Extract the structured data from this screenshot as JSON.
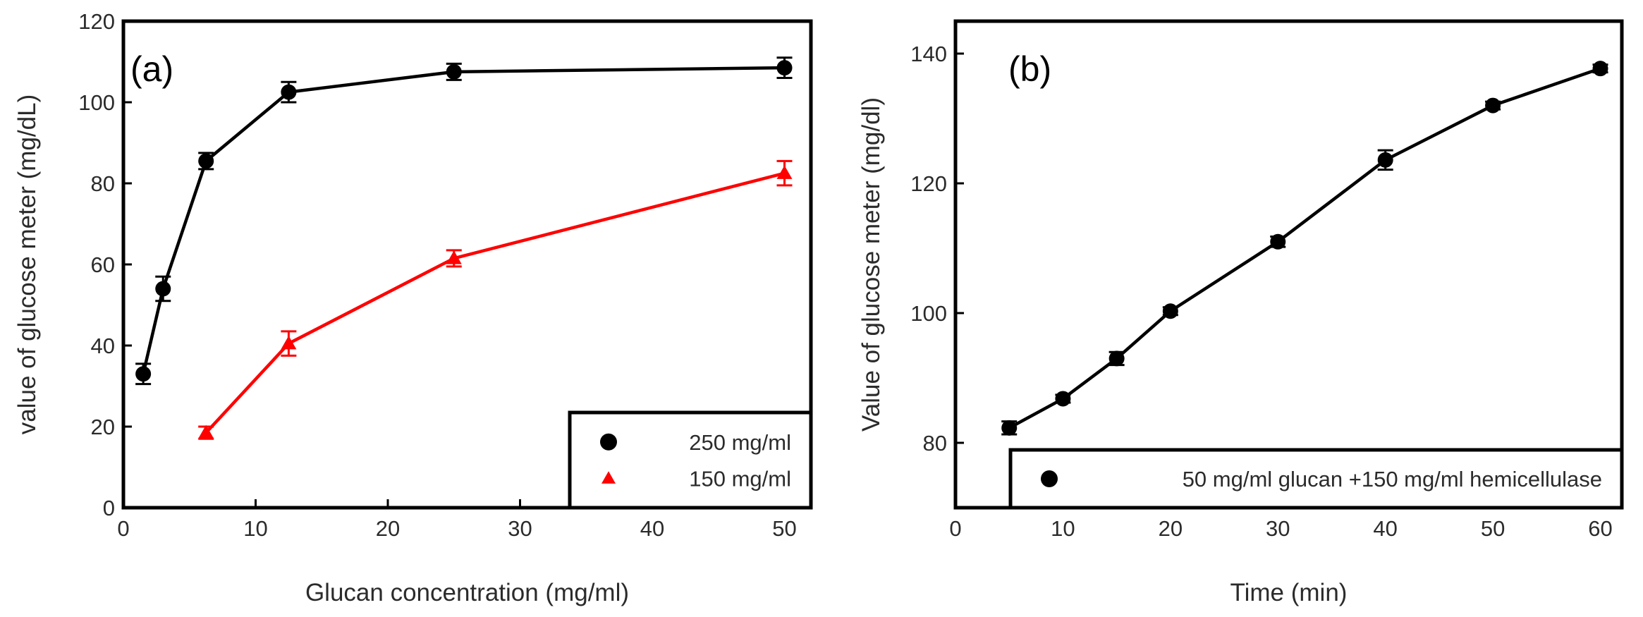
{
  "chart_data": [
    {
      "type": "line",
      "panel_label": "(a)",
      "xlabel": "Glucan concentration (mg/ml)",
      "ylabel": "value of glucose meter (mg/dL)",
      "xlim": [
        0,
        52
      ],
      "ylim": [
        0,
        120
      ],
      "xticks": [
        0,
        10,
        20,
        30,
        40,
        50
      ],
      "yticks": [
        0,
        20,
        40,
        60,
        80,
        100,
        120
      ],
      "grid": false,
      "legend_position": "bottom-right",
      "series": [
        {
          "name": "250 mg/ml",
          "color": "#000000",
          "marker": "circle",
          "x": [
            1.5,
            3,
            6.25,
            12.5,
            25,
            50
          ],
          "y": [
            33,
            54,
            85.5,
            102.5,
            107.5,
            108.5
          ],
          "err": [
            2.5,
            3,
            2,
            2.5,
            2,
            2.5
          ]
        },
        {
          "name": "150 mg/ml",
          "color": "#ff0000",
          "marker": "triangle",
          "x": [
            6.25,
            12.5,
            25,
            50
          ],
          "y": [
            18.5,
            40.5,
            61.5,
            82.5
          ],
          "err": [
            1.5,
            3,
            2,
            3
          ]
        }
      ]
    },
    {
      "type": "line",
      "panel_label": "(b)",
      "xlabel": "Time (min)",
      "ylabel": "Value of glucose meter (mg/dl)",
      "xlim": [
        0,
        62
      ],
      "ylim": [
        70,
        145
      ],
      "xticks": [
        0,
        10,
        20,
        30,
        40,
        50,
        60
      ],
      "yticks": [
        80,
        100,
        120,
        140
      ],
      "grid": false,
      "legend_position": "bottom-right",
      "series": [
        {
          "name": "50 mg/ml glucan +150 mg/ml hemicellulase",
          "color": "#000000",
          "marker": "circle",
          "x": [
            5,
            10,
            15,
            20,
            30,
            40,
            50,
            60
          ],
          "y": [
            82.3,
            86.8,
            93,
            100.3,
            111,
            123.6,
            132,
            137.7
          ],
          "err": [
            1,
            0.6,
            1,
            0.6,
            0.8,
            1.5,
            0.6,
            0.6
          ]
        }
      ]
    }
  ]
}
